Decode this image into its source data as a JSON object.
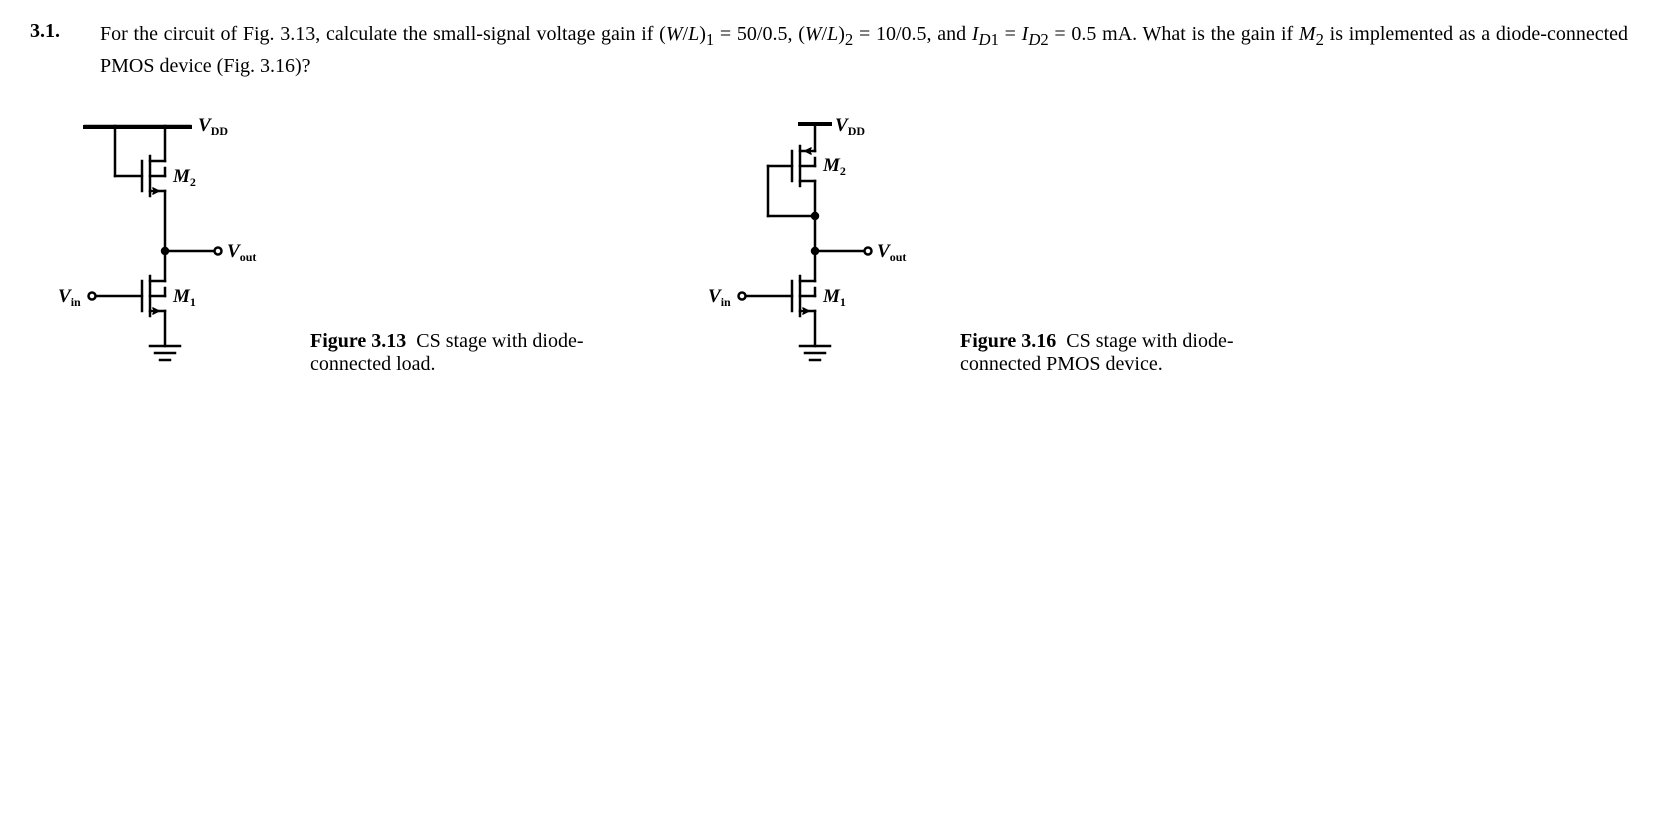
{
  "problem": {
    "number": "3.1.",
    "text_html": "For the circuit of Fig. 3.13, calculate the small-signal voltage gain if (<i>W</i>/<i>L</i>)<sub>1</sub> = 50/0.5, (<i>W</i>/<i>L</i>)<sub>2</sub> = 10/0.5, and <i>I</i><sub><i>D</i>1</sub> = <i>I</i><sub><i>D</i>2</sub> = 0.5 mA. What is the gain if <i>M</i><sub>2</sub> is implemented as a diode-connected PMOS device (Fig. 3.16)?",
    "params": {
      "WL1": "50/0.5",
      "WL2": "10/0.5",
      "ID1": "0.5 mA",
      "ID2": "0.5 mA"
    }
  },
  "fig313": {
    "number": "Figure 3.13",
    "caption": "CS stage with diode-connected load.",
    "labels": {
      "vdd": "V",
      "vdd_sub": "DD",
      "m2": "M",
      "m2_sub": "2",
      "vout": "V",
      "vout_sub": "out",
      "vin": "V",
      "vin_sub": "in",
      "m1": "M",
      "m1_sub": "1"
    },
    "style": {
      "stroke": "#000000",
      "stroke_width": 2,
      "fill": "#000000"
    }
  },
  "fig316": {
    "number": "Figure 3.16",
    "caption": "CS stage with diode-connected PMOS device.",
    "labels": {
      "vdd": "V",
      "vdd_sub": "DD",
      "m2": "M",
      "m2_sub": "2",
      "vout": "V",
      "vout_sub": "out",
      "vin": "V",
      "vin_sub": "in",
      "m1": "M",
      "m1_sub": "1"
    },
    "style": {
      "stroke": "#000000",
      "stroke_width": 2,
      "fill": "#000000"
    }
  }
}
